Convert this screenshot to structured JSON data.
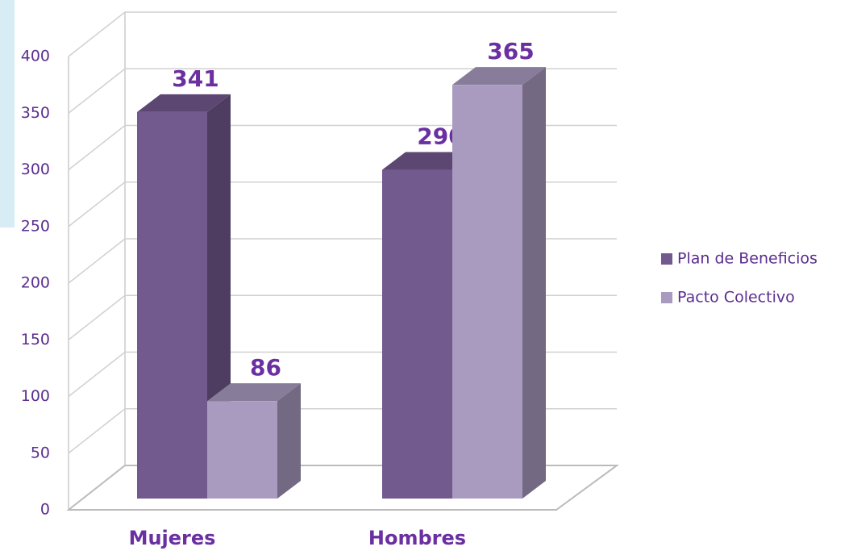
{
  "chart_data": {
    "type": "bar3d",
    "categories": [
      "Mujeres",
      "Hombres"
    ],
    "series": [
      {
        "name": "Plan de Beneficios",
        "color": "#72598e",
        "values": [
          341,
          290
        ]
      },
      {
        "name": "Pacto Colectivo",
        "color": "#a99bbf",
        "values": [
          86,
          365
        ]
      }
    ],
    "ylim": [
      0,
      400
    ],
    "yticks": [
      0,
      50,
      100,
      150,
      200,
      250,
      300,
      350,
      400
    ],
    "grid": true,
    "legend": "right"
  }
}
